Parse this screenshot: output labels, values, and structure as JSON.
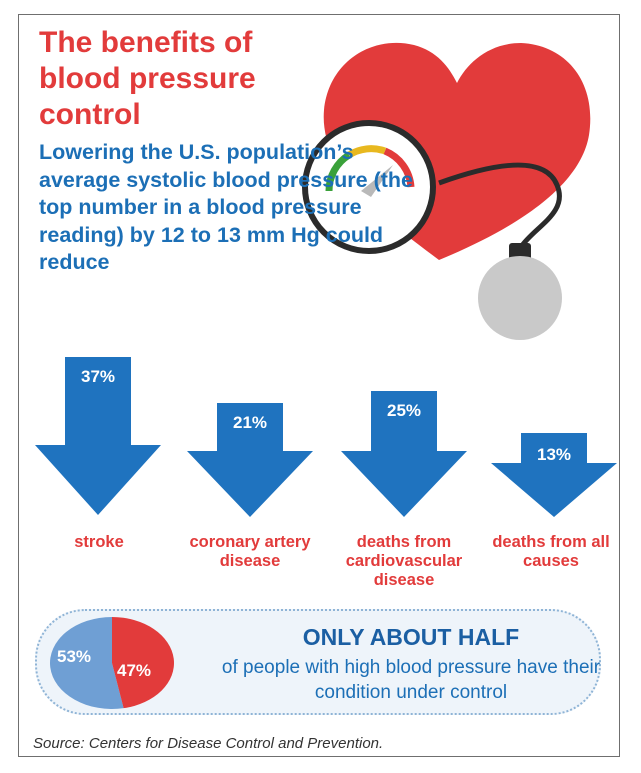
{
  "title": "The benefits of blood pressure control",
  "intro": "Lowering the U.S. population’s average systolic blood pressure (the top number in a blood pressure reading) by 12 to 13 mm Hg could reduce",
  "colors": {
    "red": "#e23b3b",
    "blue": "#1c6fb6",
    "arrow_blue": "#1f73bf",
    "pie_blue": "#6f9fd4",
    "gauge_ring": "#2b2b2b",
    "bulb_gray": "#c9c9c9"
  },
  "icons": {
    "heart": "heart-icon",
    "gauge": "pressure-gauge-icon",
    "bulb": "pump-bulb-icon",
    "arrow": "down-arrow-icon"
  },
  "reductions": [
    {
      "percent": "37%",
      "value": 37,
      "label": "stroke"
    },
    {
      "percent": "21%",
      "value": 21,
      "label": "coronary artery disease"
    },
    {
      "percent": "25%",
      "value": 25,
      "label": "deaths from cardiovascular disease"
    },
    {
      "percent": "13%",
      "value": 13,
      "label": "deaths from all causes"
    }
  ],
  "control": {
    "heading": "ONLY ABOUT HALF",
    "subtext": "of people with high blood pressure have their condition under control",
    "pie": [
      {
        "label": "53%",
        "value": 53,
        "color": "#6f9fd4"
      },
      {
        "label": "47%",
        "value": 47,
        "color": "#e23b3b"
      }
    ]
  },
  "source": "Source: Centers for Disease Control and Prevention."
}
